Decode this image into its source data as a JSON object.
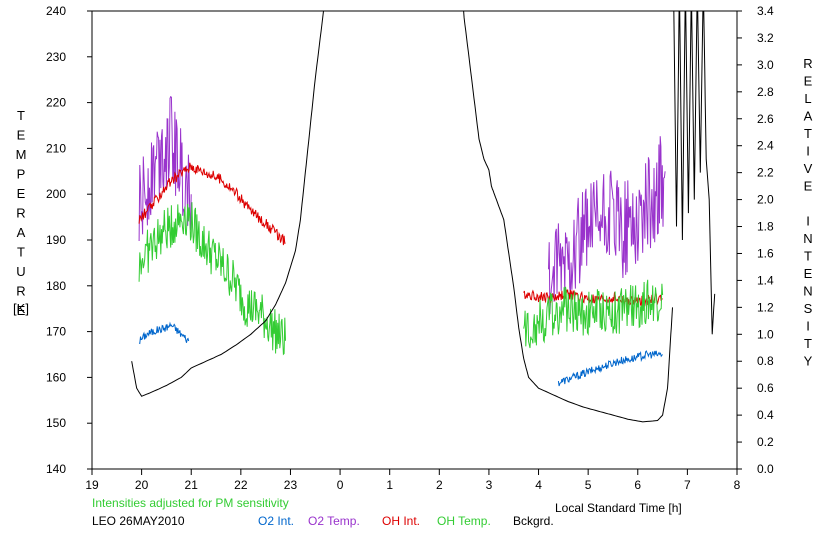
{
  "chart_data": {
    "type": "line",
    "title": "",
    "y_left_label": "TEMPERATURE",
    "y_left_unit": "[K]",
    "y_right_label": "RELATIVE INTENSITY",
    "xlabel": "Local Standard Time [h]",
    "note": "Intensities adjusted for PM sensitivity",
    "station_label": "LEO 26MAY2010",
    "x_ticks": [
      "19",
      "20",
      "21",
      "22",
      "23",
      "0",
      "1",
      "2",
      "3",
      "4",
      "5",
      "6",
      "7",
      "8"
    ],
    "y_left_ticks": [
      "140",
      "150",
      "160",
      "170",
      "180",
      "190",
      "200",
      "210",
      "220",
      "230",
      "240"
    ],
    "y_right_ticks": [
      "0.0",
      "0.2",
      "0.4",
      "0.6",
      "0.8",
      "1.0",
      "1.2",
      "1.4",
      "1.6",
      "1.8",
      "2.0",
      "2.2",
      "2.4",
      "2.6",
      "2.8",
      "3.0",
      "3.2",
      "3.4"
    ],
    "xlim": [
      19,
      32
    ],
    "ylim_left": [
      140,
      240
    ],
    "ylim_right": [
      0.0,
      3.4
    ],
    "grid": false,
    "legend_position": "bottom",
    "series": [
      {
        "name": "O2 Int.",
        "axis": "right",
        "color": "#0066cc",
        "noise": 0.03,
        "x": [
          19.95,
          20.1,
          20.3,
          20.5,
          20.6,
          20.8,
          20.95
        ],
        "y": [
          0.95,
          1.0,
          1.03,
          1.05,
          1.07,
          1.0,
          0.95
        ]
      },
      {
        "name": "O2 Int.",
        "axis": "right",
        "color": "#0066cc",
        "noise": 0.03,
        "x": [
          4.4,
          4.7,
          5.0,
          5.3,
          5.6,
          5.9,
          6.2,
          6.5
        ],
        "y": [
          0.64,
          0.68,
          0.72,
          0.76,
          0.8,
          0.82,
          0.85,
          0.85
        ]
      },
      {
        "name": "O2 Temp.",
        "axis": "left",
        "color": "#9933cc",
        "noise": 10,
        "x": [
          19.95,
          20.2,
          20.4,
          20.6,
          20.8,
          21.0
        ],
        "y": [
          196,
          205,
          210,
          212,
          205,
          200
        ]
      },
      {
        "name": "O2 Temp.",
        "axis": "left",
        "color": "#9933cc",
        "noise": 11,
        "x": [
          4.2,
          4.5,
          4.8,
          5.1,
          5.4,
          5.7,
          6.0,
          6.3,
          6.55
        ],
        "y": [
          180,
          185,
          190,
          192,
          195,
          192,
          195,
          198,
          205
        ]
      },
      {
        "name": "OH Int.",
        "axis": "right",
        "color": "#dd0000",
        "noise": 0.04,
        "x": [
          19.95,
          20.2,
          20.5,
          20.8,
          21.0,
          21.3,
          21.6,
          21.9,
          22.2,
          22.5,
          22.8,
          22.9
        ],
        "y": [
          1.85,
          1.95,
          2.1,
          2.2,
          2.25,
          2.2,
          2.15,
          2.05,
          1.92,
          1.82,
          1.72,
          1.68
        ]
      },
      {
        "name": "OH Int.",
        "axis": "right",
        "color": "#dd0000",
        "noise": 0.04,
        "x": [
          3.7,
          4.0,
          4.3,
          4.6,
          4.9,
          5.2,
          5.5,
          5.8,
          6.1,
          6.4,
          6.5
        ],
        "y": [
          1.3,
          1.28,
          1.27,
          1.3,
          1.27,
          1.25,
          1.27,
          1.24,
          1.25,
          1.27,
          1.26
        ]
      },
      {
        "name": "OH Temp.",
        "axis": "left",
        "color": "#33cc33",
        "noise": 5,
        "x": [
          19.95,
          20.3,
          20.6,
          20.9,
          21.2,
          21.5,
          21.8,
          22.1,
          22.4,
          22.7,
          22.9
        ],
        "y": [
          185,
          190,
          193,
          196,
          190,
          186,
          182,
          176,
          174,
          170,
          168
        ]
      },
      {
        "name": "OH Temp.",
        "axis": "left",
        "color": "#33cc33",
        "noise": 5,
        "x": [
          3.7,
          4.0,
          4.3,
          4.6,
          4.9,
          5.2,
          5.5,
          5.8,
          6.1,
          6.4,
          6.5
        ],
        "y": [
          170,
          172,
          174,
          175,
          174,
          175,
          174,
          175,
          176,
          177,
          178
        ]
      },
      {
        "name": "Bckgrd.",
        "axis": "right",
        "color": "#000000",
        "noise": 0,
        "x": [
          19.8,
          19.9,
          20.0,
          20.2,
          20.5,
          20.8,
          21.0,
          21.3,
          21.6,
          21.9,
          22.2,
          22.5,
          22.7,
          22.9,
          23.1,
          23.2,
          23.3,
          23.4,
          23.5,
          23.6,
          23.7,
          23.73
        ],
        "y": [
          0.8,
          0.6,
          0.54,
          0.57,
          0.62,
          0.68,
          0.75,
          0.8,
          0.85,
          0.92,
          1.0,
          1.1,
          1.22,
          1.38,
          1.62,
          1.85,
          2.2,
          2.55,
          2.9,
          3.2,
          3.5,
          3.6
        ]
      },
      {
        "name": "Bckgrd.",
        "axis": "right",
        "color": "#000000",
        "noise": 0,
        "x": [
          2.45,
          2.5,
          2.6,
          2.7,
          2.8,
          2.9,
          3.0,
          3.05,
          3.1,
          3.2,
          3.3,
          3.4,
          3.5,
          3.6,
          3.7,
          3.8,
          4.0,
          4.3,
          4.6,
          4.9,
          5.2,
          5.5,
          5.8,
          6.1,
          6.4,
          6.5,
          6.6,
          6.65,
          6.7
        ],
        "y": [
          3.6,
          3.35,
          3.05,
          2.75,
          2.45,
          2.3,
          2.22,
          2.1,
          2.05,
          1.95,
          1.85,
          1.6,
          1.35,
          1.05,
          0.82,
          0.68,
          0.6,
          0.55,
          0.5,
          0.46,
          0.43,
          0.4,
          0.37,
          0.35,
          0.36,
          0.4,
          0.6,
          0.9,
          1.2
        ]
      },
      {
        "name": "Bckgrd.",
        "axis": "right",
        "color": "#000000",
        "noise": 0,
        "x": [
          6.72,
          6.78,
          6.84,
          6.9,
          6.96,
          7.02,
          7.08,
          7.14,
          7.2,
          7.26,
          7.32,
          7.38,
          7.44,
          7.5,
          7.55
        ],
        "y": [
          3.6,
          1.8,
          3.6,
          1.7,
          3.6,
          1.9,
          3.6,
          2.0,
          3.6,
          2.2,
          3.6,
          2.3,
          2.0,
          1.0,
          1.3
        ]
      }
    ]
  },
  "legend": [
    {
      "label": "O2 Int.",
      "color": "#0066cc"
    },
    {
      "label": "O2 Temp.",
      "color": "#9933cc"
    },
    {
      "label": "OH Int.",
      "color": "#dd0000"
    },
    {
      "label": "OH Temp.",
      "color": "#33cc33"
    },
    {
      "label": "Bckgrd.",
      "color": "#000000"
    }
  ],
  "colors": {
    "axis": "#000000",
    "note": "#33cc33"
  }
}
